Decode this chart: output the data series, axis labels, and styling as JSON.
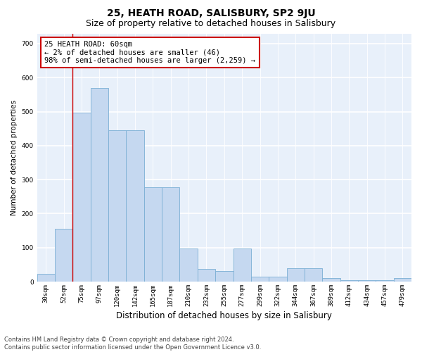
{
  "title": "25, HEATH ROAD, SALISBURY, SP2 9JU",
  "subtitle": "Size of property relative to detached houses in Salisbury",
  "xlabel": "Distribution of detached houses by size in Salisbury",
  "ylabel": "Number of detached properties",
  "categories": [
    "30sqm",
    "52sqm",
    "75sqm",
    "97sqm",
    "120sqm",
    "142sqm",
    "165sqm",
    "187sqm",
    "210sqm",
    "232sqm",
    "255sqm",
    "277sqm",
    "299sqm",
    "322sqm",
    "344sqm",
    "367sqm",
    "389sqm",
    "412sqm",
    "434sqm",
    "457sqm",
    "479sqm"
  ],
  "values": [
    22,
    155,
    497,
    570,
    445,
    445,
    277,
    277,
    98,
    37,
    32,
    98,
    15,
    15,
    40,
    40,
    10,
    5,
    5,
    5,
    10
  ],
  "bar_color": "#c5d8f0",
  "bar_edge_color": "#7bafd4",
  "bg_color": "#e8f0fa",
  "grid_color": "#ffffff",
  "annotation_text": "25 HEATH ROAD: 60sqm\n← 2% of detached houses are smaller (46)\n98% of semi-detached houses are larger (2,259) →",
  "annotation_box_color": "#ffffff",
  "annotation_box_edge": "#cc0000",
  "vline_x": 1.5,
  "vline_color": "#cc0000",
  "ylim": [
    0,
    730
  ],
  "yticks": [
    0,
    100,
    200,
    300,
    400,
    500,
    600,
    700
  ],
  "footnote": "Contains HM Land Registry data © Crown copyright and database right 2024.\nContains public sector information licensed under the Open Government Licence v3.0.",
  "title_fontsize": 10,
  "subtitle_fontsize": 9,
  "xlabel_fontsize": 8.5,
  "ylabel_fontsize": 7.5,
  "tick_fontsize": 6.5,
  "annot_fontsize": 7.5,
  "footnote_fontsize": 6
}
